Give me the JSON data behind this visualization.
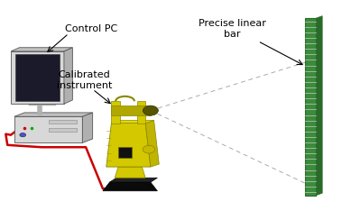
{
  "bg_color": "#ffffff",
  "figsize": [
    3.79,
    2.44
  ],
  "dpi": 100,
  "labels": {
    "control_pc": "Control PC",
    "precise_linear_bar": "Precise linear\nbar",
    "calibrated_instrument": "Calibrated\ninstrument"
  },
  "pc_color_front": "#d8d8d8",
  "pc_color_top": "#c0c0c0",
  "pc_color_side": "#b0b0b0",
  "monitor_screen": "#1a1a2a",
  "instrument_color": "#d4c800",
  "instrument_dark": "#b0a800",
  "instrument_side": "#c0b400",
  "bar_green": "#3a8c3a",
  "bar_dark_green": "#2a6a2a",
  "label_fontsize": 8.0
}
